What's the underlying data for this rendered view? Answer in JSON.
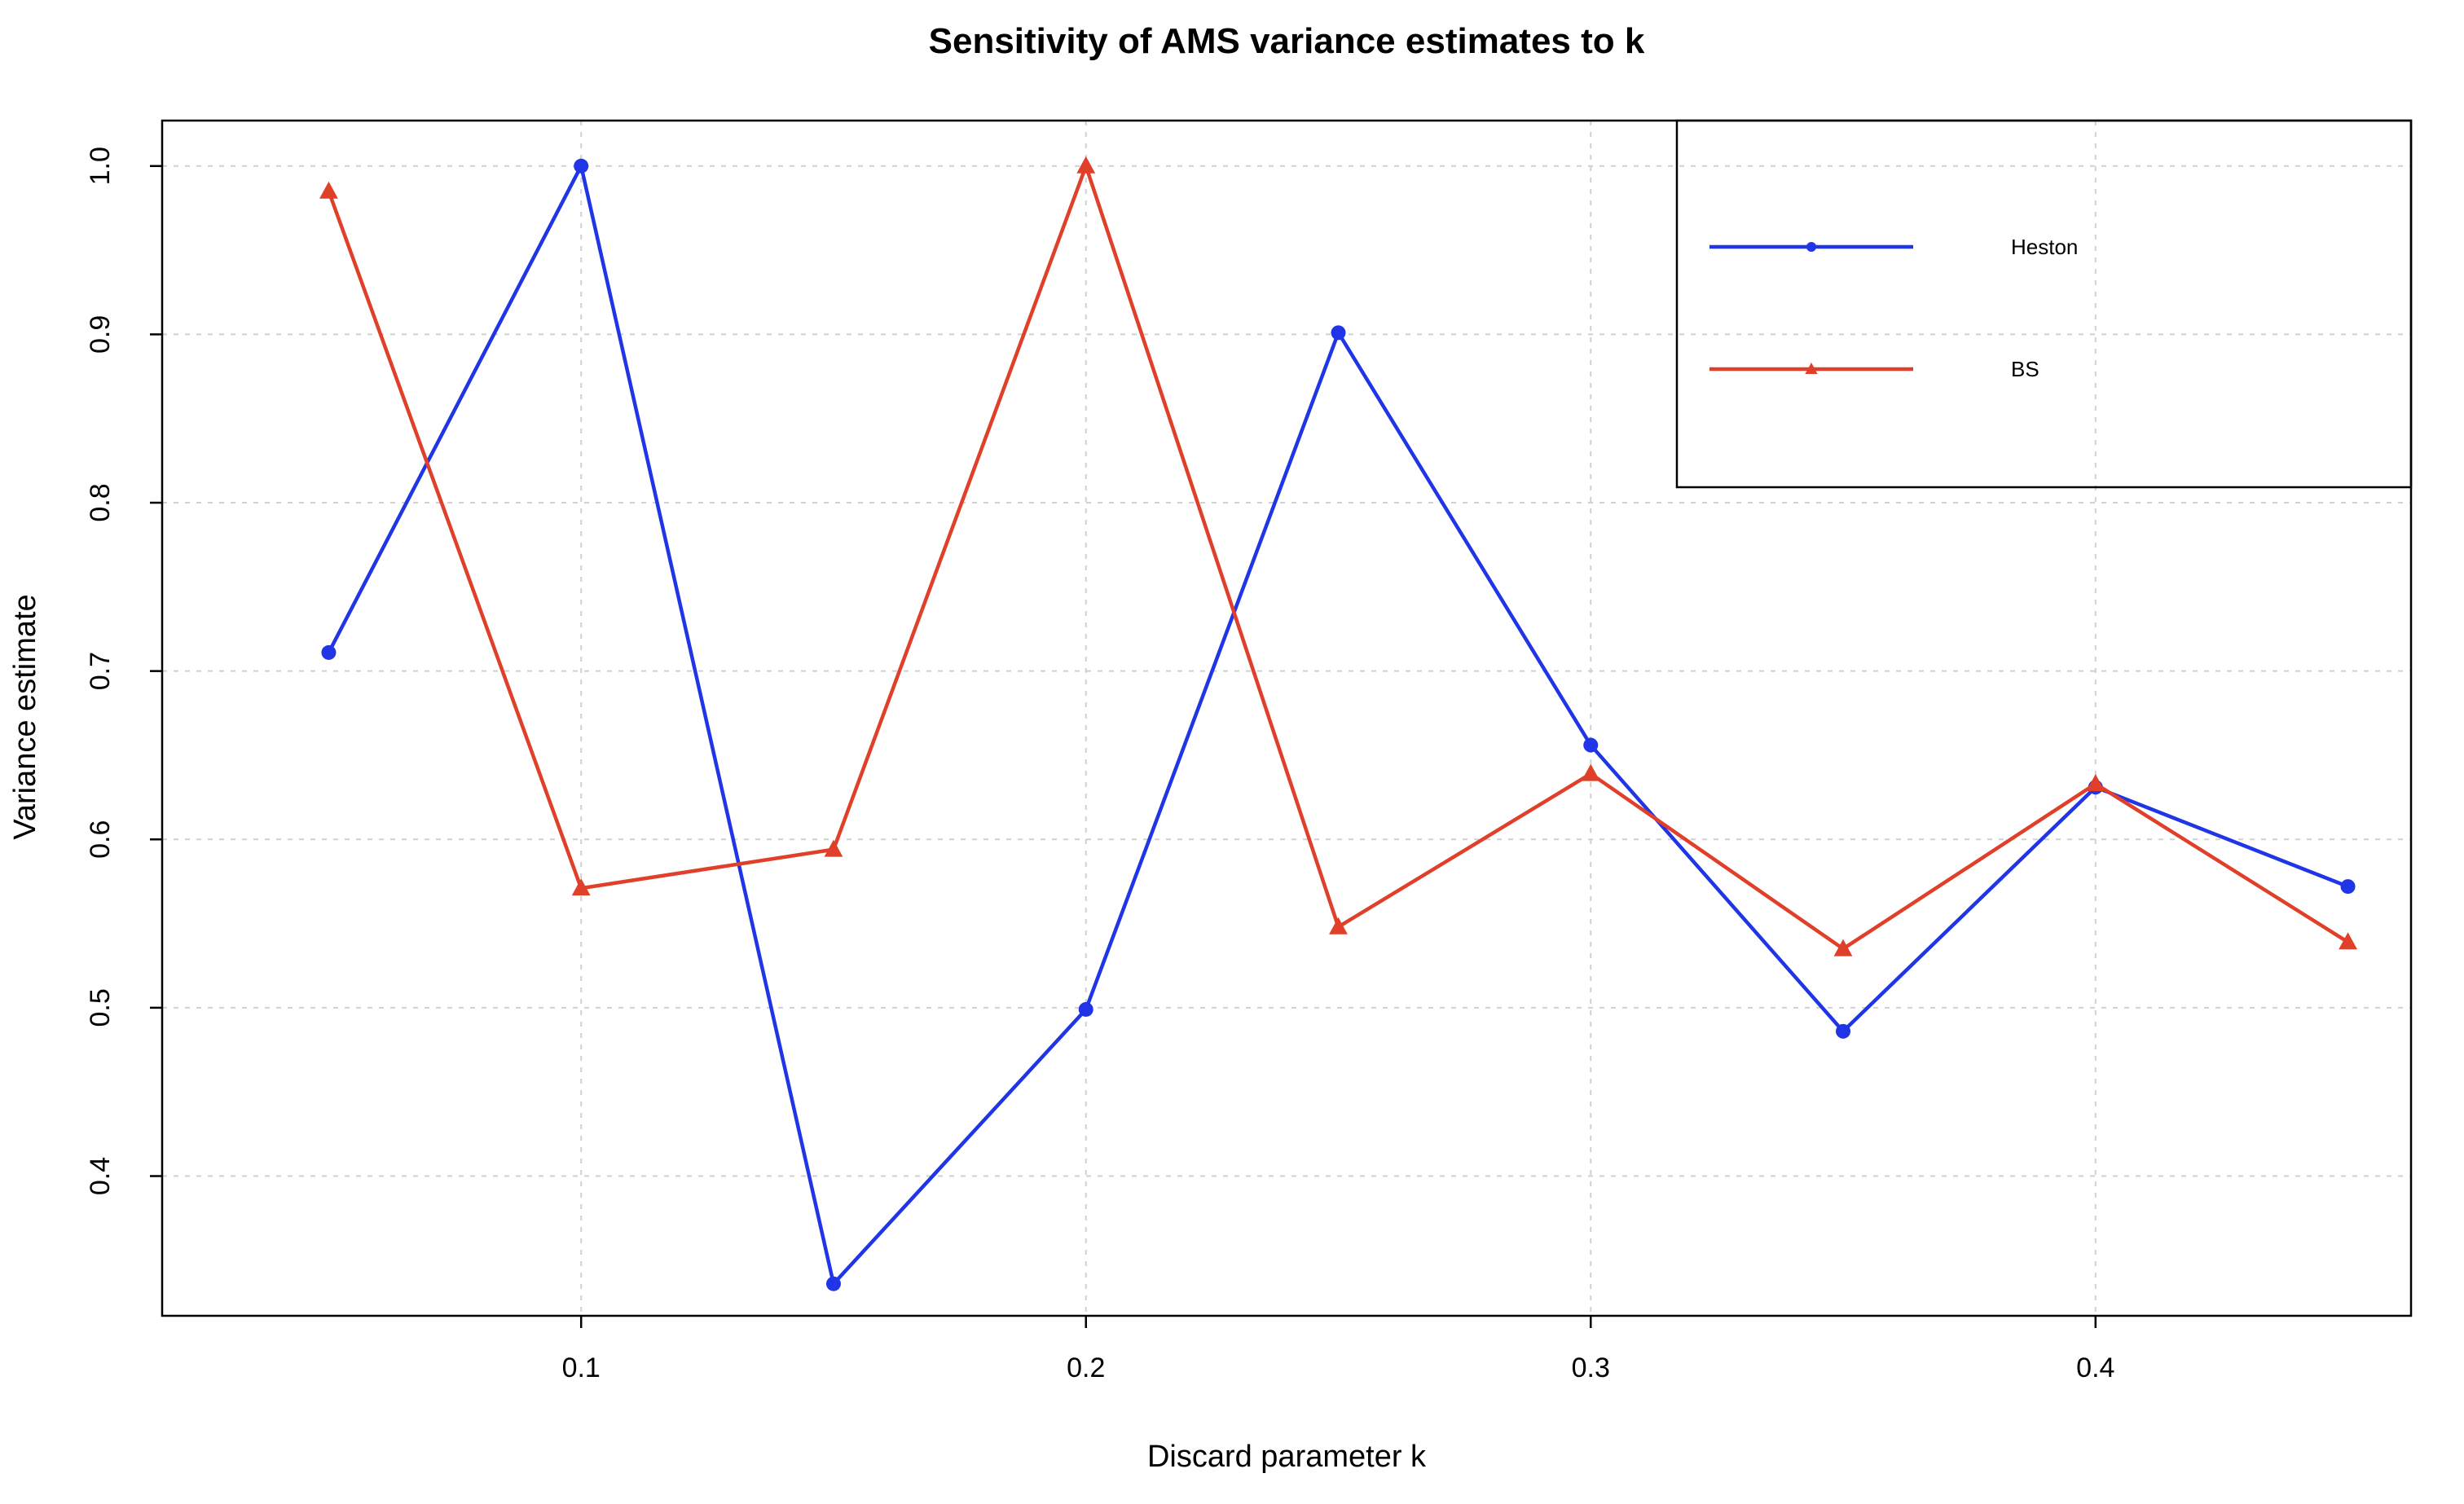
{
  "chart_data": {
    "type": "line",
    "title": "Sensitivity of AMS variance estimates to k",
    "xlabel": "Discard parameter k",
    "ylabel": "Variance estimate",
    "x": [
      0.05,
      0.1,
      0.15,
      0.2,
      0.25,
      0.3,
      0.35,
      0.4,
      0.45
    ],
    "xlim": [
      0.017,
      0.4625
    ],
    "ylim": [
      0.317,
      1.027
    ],
    "x_ticks": [
      0.1,
      0.2,
      0.3,
      0.4
    ],
    "x_tick_labels": [
      "0.1",
      "0.2",
      "0.3",
      "0.4"
    ],
    "y_ticks": [
      0.4,
      0.5,
      0.6,
      0.7,
      0.8,
      0.9,
      1.0
    ],
    "y_tick_labels": [
      "0.4",
      "0.5",
      "0.6",
      "0.7",
      "0.8",
      "0.9",
      "1.0"
    ],
    "grid": true,
    "legend_position": "top-right",
    "series": [
      {
        "name": "Heston",
        "color": "#1f35e6",
        "marker": "circle",
        "values": [
          0.711,
          1.0,
          0.336,
          0.499,
          0.901,
          0.656,
          0.486,
          0.631,
          0.572
        ]
      },
      {
        "name": "BS",
        "color": "#e0402a",
        "marker": "triangle",
        "values": [
          0.985,
          0.571,
          0.594,
          1.0,
          0.548,
          0.639,
          0.535,
          0.633,
          0.539
        ]
      }
    ]
  }
}
